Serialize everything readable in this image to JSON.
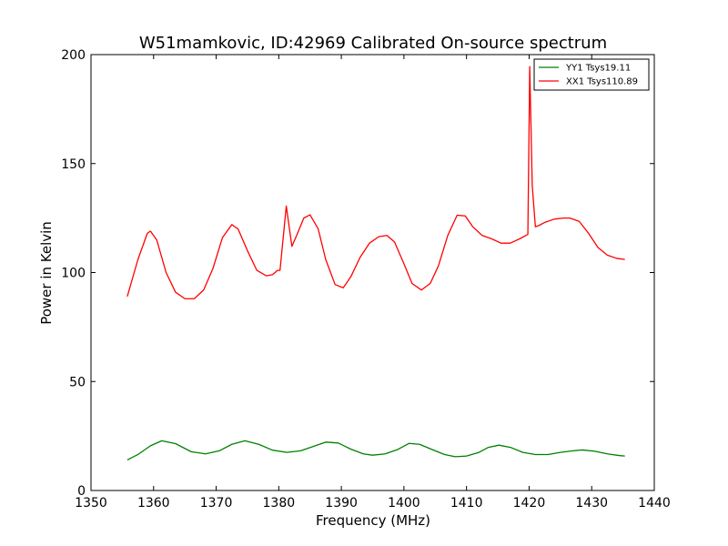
{
  "chart_data": {
    "type": "line",
    "title": "W51mamkovic, ID:42969 Calibrated On-source spectrum",
    "xlabel": "Frequency (MHz)",
    "ylabel": "Power in Kelvin",
    "xlim": [
      1350,
      1440
    ],
    "ylim": [
      0,
      200
    ],
    "xticks": [
      1350,
      1360,
      1370,
      1380,
      1390,
      1400,
      1410,
      1420,
      1430,
      1440
    ],
    "yticks": [
      0,
      50,
      100,
      150,
      200
    ],
    "grid": false,
    "legend": "top-right",
    "series": [
      {
        "name": "YY1 Tsys19.11",
        "color": "#008000",
        "x": [
          1355.8,
          1357.5,
          1359.5,
          1361.3,
          1363.5,
          1366,
          1368.3,
          1370.5,
          1372.5,
          1374.6,
          1376.8,
          1379,
          1381.3,
          1383.5,
          1385.5,
          1387.5,
          1389.5,
          1391.5,
          1393.5,
          1395,
          1397,
          1399,
          1400.8,
          1402.5,
          1404.5,
          1406.5,
          1408.2,
          1410,
          1412,
          1413.5,
          1415.2,
          1417,
          1419,
          1421,
          1423,
          1425,
          1427,
          1428.5,
          1430.5,
          1432.5,
          1434.5,
          1435.3
        ],
        "y": [
          14,
          16.5,
          20.5,
          22.8,
          21.5,
          17.8,
          16.8,
          18.2,
          21.2,
          22.8,
          21.2,
          18.5,
          17.5,
          18.2,
          20.2,
          22.2,
          21.8,
          19,
          16.8,
          16.2,
          16.8,
          18.8,
          21.6,
          21.2,
          18.8,
          16.5,
          15.5,
          15.8,
          17.5,
          19.8,
          20.8,
          19.8,
          17.5,
          16.5,
          16.5,
          17.5,
          18.2,
          18.6,
          18,
          16.8,
          16,
          15.8
        ]
      },
      {
        "name": "XX1 Tsys110.89",
        "color": "#ff0000",
        "x": [
          1355.8,
          1357.5,
          1359,
          1359.5,
          1360.5,
          1362,
          1363.5,
          1365,
          1366.5,
          1368,
          1369.5,
          1371,
          1372.5,
          1373.5,
          1375,
          1376.5,
          1378,
          1379,
          1379.8,
          1380.2,
          1381.2,
          1382.1,
          1383,
          1384,
          1385,
          1386.3,
          1387.5,
          1389,
          1390.3,
          1391.5,
          1393,
          1394.5,
          1396,
          1397.3,
          1398.5,
          1400,
          1401.3,
          1402.8,
          1404.2,
          1405.5,
          1407,
          1408.5,
          1409.8,
          1411,
          1412.5,
          1414,
          1415.5,
          1417,
          1418.5,
          1419.8,
          1420.1,
          1420.5,
          1421,
          1421.5,
          1422.5,
          1424,
          1425.5,
          1426.5,
          1428,
          1429.5,
          1431,
          1432.5,
          1434,
          1435.3
        ],
        "y": [
          89,
          106,
          118,
          119,
          115,
          100,
          91,
          88,
          88,
          92,
          102,
          116,
          122,
          120,
          110,
          101,
          98.5,
          99,
          101,
          101,
          130.5,
          112,
          118,
          125,
          126.5,
          120,
          106,
          94.5,
          93,
          98,
          107,
          113.5,
          116.5,
          117,
          114,
          104,
          95,
          92,
          95,
          103,
          117,
          126.3,
          126,
          121,
          117,
          115.5,
          113.5,
          113.5,
          115.5,
          117.5,
          194.5,
          140,
          121,
          121.5,
          123,
          124.5,
          125,
          125,
          123.5,
          118,
          111.5,
          108,
          106.5,
          106
        ]
      }
    ]
  }
}
